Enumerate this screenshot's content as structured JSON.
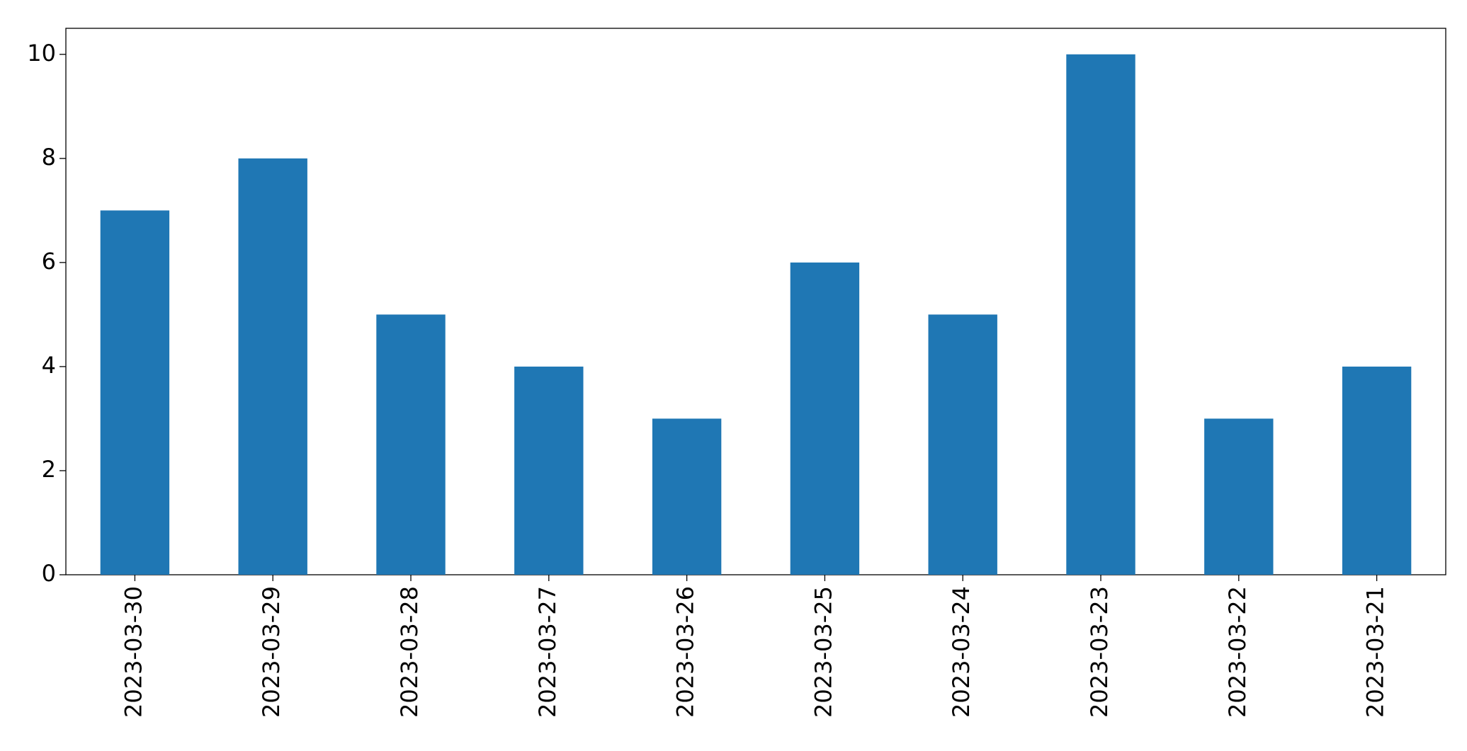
{
  "chart_data": {
    "type": "bar",
    "categories": [
      "2023-03-30",
      "2023-03-29",
      "2023-03-28",
      "2023-03-27",
      "2023-03-26",
      "2023-03-25",
      "2023-03-24",
      "2023-03-23",
      "2023-03-22",
      "2023-03-21"
    ],
    "values": [
      7,
      8,
      5,
      4,
      3,
      6,
      5,
      10,
      3,
      4
    ],
    "color": "#1f77b4",
    "ylim": [
      0,
      10.5
    ],
    "yticks": [
      0,
      2,
      4,
      6,
      8,
      10
    ],
    "grid": false
  }
}
